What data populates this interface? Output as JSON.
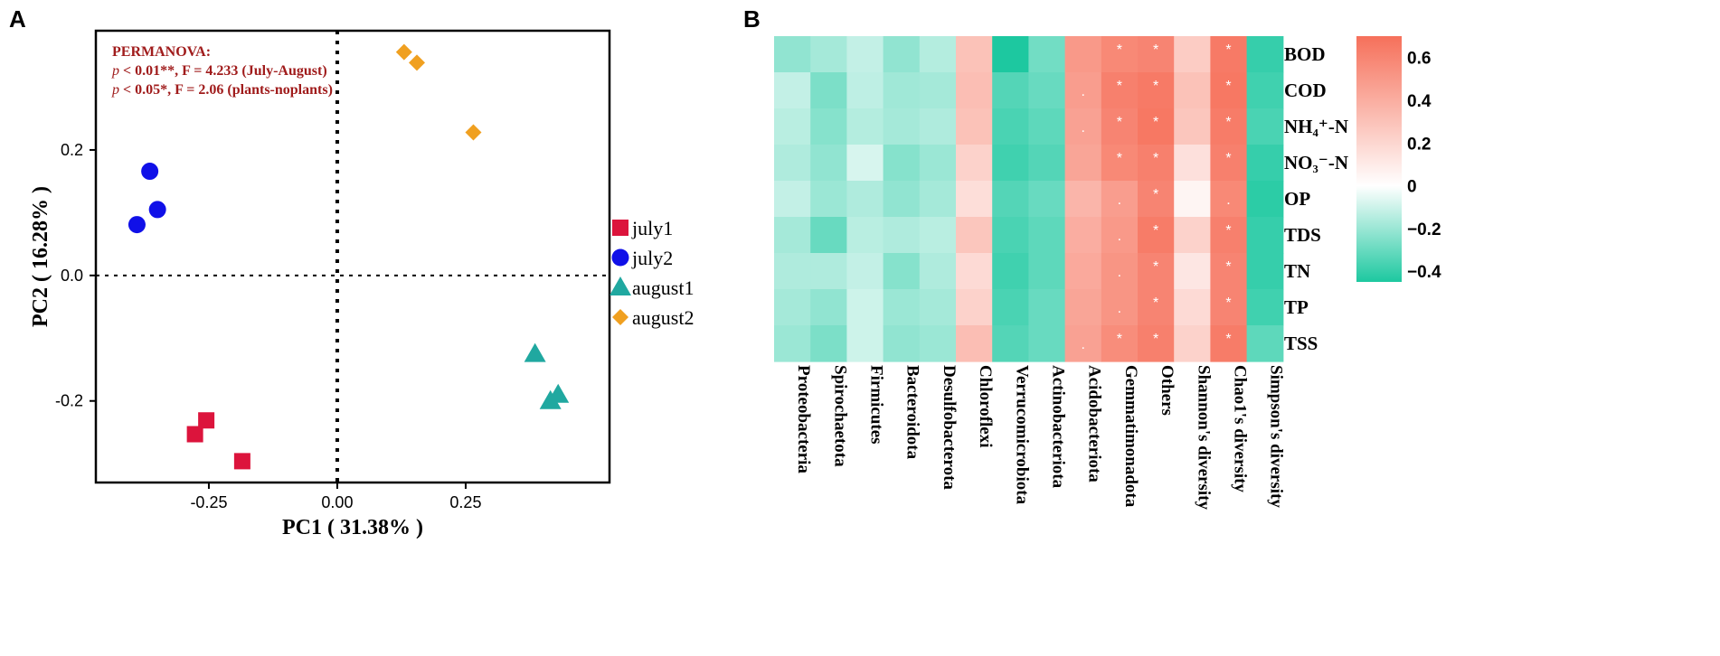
{
  "chart_data": [
    {
      "type": "scatter",
      "panel_label": "A",
      "xlabel": "PC1 ( 31.38% )",
      "ylabel": "PC2 ( 16.28% )",
      "xlim": [
        -0.47,
        0.53
      ],
      "ylim": [
        -0.33,
        0.39
      ],
      "x_ticks": [
        -0.25,
        0.0,
        0.25
      ],
      "x_tick_labels": [
        "-0.25",
        "0.00",
        "0.25"
      ],
      "y_ticks": [
        -0.2,
        0.0,
        0.2
      ],
      "y_tick_labels": [
        "-0.2",
        "0.0",
        "0.2"
      ],
      "reference_lines": {
        "x": 0,
        "y": 0
      },
      "annotation": {
        "title": "PERMANOVA:",
        "lines": [
          {
            "p": "p",
            "text": " < 0.01**, F = 4.233 (July-August)"
          },
          {
            "p": "p",
            "text": " < 0.05*, F = 2.06 (plants-noplants)"
          }
        ]
      },
      "series": [
        {
          "name": "july1",
          "marker": "square",
          "color": "#dc143c",
          "points": [
            [
              -0.255,
              -0.231
            ],
            [
              -0.277,
              -0.253
            ],
            [
              -0.185,
              -0.296
            ]
          ]
        },
        {
          "name": "july2",
          "marker": "circle",
          "color": "#1010e8",
          "points": [
            [
              -0.365,
              0.166
            ],
            [
              -0.35,
              0.105
            ],
            [
              -0.39,
              0.081
            ]
          ]
        },
        {
          "name": "august1",
          "marker": "triangle",
          "color": "#20a8a0",
          "points": [
            [
              0.385,
              -0.125
            ],
            [
              0.43,
              -0.19
            ],
            [
              0.415,
              -0.2
            ]
          ]
        },
        {
          "name": "august2",
          "marker": "diamond",
          "color": "#f0a020",
          "points": [
            [
              0.13,
              0.356
            ],
            [
              0.155,
              0.339
            ],
            [
              0.265,
              0.228
            ]
          ]
        }
      ]
    },
    {
      "type": "heatmap",
      "panel_label": "B",
      "rows": [
        "BOD",
        "COD",
        "NH₄⁺-N",
        "NO₃⁻-N",
        "OP",
        "TDS",
        "TN",
        "TP",
        "TSS"
      ],
      "columns": [
        "Proteobacteria",
        "Spirochaetota",
        "Firmicutes",
        "Bacteroidota",
        "Desulfobacterota",
        "Chloroflexi",
        "Verrucomicrobiota",
        "Actinobacteriota",
        "Acidobacteriota",
        "Gemmatimonadota",
        "Others",
        "Shannon's diversity",
        "Chao1's diversity",
        "Simpson's diversity"
      ],
      "values": [
        [
          -0.22,
          -0.18,
          -0.12,
          -0.22,
          -0.15,
          0.3,
          -0.45,
          -0.28,
          0.5,
          0.58,
          0.6,
          0.25,
          0.65,
          -0.4
        ],
        [
          -0.12,
          -0.26,
          -0.13,
          -0.19,
          -0.18,
          0.32,
          -0.34,
          -0.3,
          0.48,
          0.62,
          0.65,
          0.3,
          0.66,
          -0.38
        ],
        [
          -0.14,
          -0.24,
          -0.15,
          -0.18,
          -0.16,
          0.3,
          -0.36,
          -0.32,
          0.46,
          0.6,
          0.66,
          0.28,
          0.64,
          -0.36
        ],
        [
          -0.16,
          -0.22,
          -0.08,
          -0.24,
          -0.2,
          0.22,
          -0.38,
          -0.34,
          0.44,
          0.58,
          0.62,
          0.15,
          0.62,
          -0.4
        ],
        [
          -0.12,
          -0.2,
          -0.16,
          -0.22,
          -0.18,
          0.16,
          -0.34,
          -0.3,
          0.36,
          0.48,
          0.6,
          0.05,
          0.58,
          -0.42
        ],
        [
          -0.18,
          -0.3,
          -0.14,
          -0.16,
          -0.14,
          0.28,
          -0.36,
          -0.32,
          0.4,
          0.5,
          0.64,
          0.22,
          0.62,
          -0.4
        ],
        [
          -0.16,
          -0.16,
          -0.12,
          -0.24,
          -0.16,
          0.18,
          -0.38,
          -0.32,
          0.42,
          0.52,
          0.6,
          0.12,
          0.6,
          -0.4
        ],
        [
          -0.18,
          -0.22,
          -0.1,
          -0.2,
          -0.18,
          0.22,
          -0.36,
          -0.3,
          0.44,
          0.52,
          0.6,
          0.18,
          0.6,
          -0.38
        ],
        [
          -0.2,
          -0.26,
          -0.1,
          -0.22,
          -0.2,
          0.32,
          -0.34,
          -0.3,
          0.46,
          0.56,
          0.62,
          0.22,
          0.64,
          -0.32
        ]
      ],
      "significance": [
        [
          "",
          "",
          "",
          "",
          "",
          "",
          "",
          "",
          "",
          "*",
          "*",
          "",
          "*",
          ""
        ],
        [
          "",
          "",
          "",
          "",
          "",
          "",
          "",
          "",
          ".",
          "*",
          "*",
          "",
          "*",
          ""
        ],
        [
          "",
          "",
          "",
          "",
          "",
          "",
          "",
          "",
          ".",
          "*",
          "*",
          "",
          "*",
          ""
        ],
        [
          "",
          "",
          "",
          "",
          "",
          "",
          "",
          "",
          "",
          "*",
          "*",
          "",
          "*",
          ""
        ],
        [
          "",
          "",
          "",
          "",
          "",
          "",
          "",
          "",
          "",
          ".",
          "*",
          "",
          ".",
          ""
        ],
        [
          "",
          "",
          "",
          "",
          "",
          "",
          "",
          "",
          "",
          ".",
          "*",
          "",
          "*",
          ""
        ],
        [
          "",
          "",
          "",
          "",
          "",
          "",
          "",
          "",
          "",
          ".",
          "*",
          "",
          "*",
          ""
        ],
        [
          "",
          "",
          "",
          "",
          "",
          "",
          "",
          "",
          "",
          ".",
          "*",
          "",
          "*",
          ""
        ],
        [
          "",
          "",
          "",
          "",
          "",
          "",
          "",
          "",
          ".",
          "*",
          "*",
          "",
          "*",
          ""
        ]
      ],
      "colorbar": {
        "min": -0.45,
        "max": 0.7,
        "ticks": [
          0.6,
          0.4,
          0.2,
          0,
          -0.2,
          -0.4
        ],
        "tick_labels": [
          "0.6",
          "0.4",
          "0.2",
          "0",
          "−0.2",
          "−0.4"
        ],
        "low_color": "#1dc8a0",
        "mid_color": "#ffffff",
        "high_color": "#f6705a"
      }
    }
  ]
}
